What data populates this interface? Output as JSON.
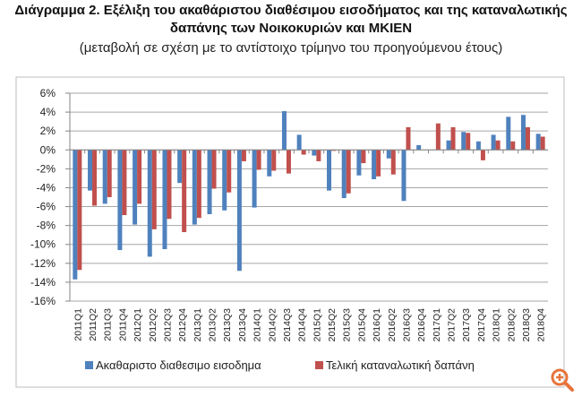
{
  "chart_data": {
    "type": "bar",
    "title": "Διάγραμμα 2. Εξέλιξη του ακαθάριστου διαθέσιμου εισοδήματος και της καταναλωτικής",
    "title_line2": "δαπάνης των Νοικοκυριών και ΜΚΙΕΝ",
    "subtitle": "(μεταβολή σε σχέση με το αντίστοιχο τρίμηνο του προηγούμενου έτους)",
    "xlabel": "",
    "ylabel": "",
    "ylim": [
      -16,
      6
    ],
    "yticks": [
      "6%",
      "4%",
      "2%",
      "0%",
      "-2%",
      "-4%",
      "-6%",
      "-8%",
      "-10%",
      "-12%",
      "-14%",
      "-16%"
    ],
    "grid": true,
    "legend_position": "bottom",
    "categories": [
      "2011Q1",
      "2011Q2",
      "2011Q3",
      "2011Q4",
      "2012Q1",
      "2012Q2",
      "2012Q3",
      "2012Q4",
      "2013Q1",
      "2013Q2",
      "2013Q3",
      "2013Q4",
      "2014Q1",
      "2014Q2",
      "2014Q3",
      "2014Q4",
      "2015Q1",
      "2015Q2",
      "2015Q3",
      "2015Q4",
      "2016Q1",
      "2016Q2",
      "2016Q3",
      "2016Q4",
      "2017Q1",
      "2017Q2",
      "2017Q3",
      "2017Q4",
      "2018Q1",
      "2018Q2",
      "2018Q3",
      "2018Q4"
    ],
    "series": [
      {
        "name": "Ακαθαριστο διαθεσιμο εισοδημα",
        "color": "#4F81BD",
        "values": [
          -13.7,
          -4.3,
          -5.7,
          -10.6,
          -7.9,
          -11.3,
          -10.5,
          -3.5,
          -7.9,
          -6.8,
          -6.4,
          -12.8,
          -6.1,
          -2.8,
          4.1,
          1.6,
          -0.6,
          -4.3,
          -5.1,
          -2.7,
          -3.1,
          -0.9,
          -5.4,
          0.5,
          0.0,
          1.0,
          1.9,
          0.9,
          1.6,
          3.5,
          3.7,
          1.7
        ]
      },
      {
        "name": "Τελική καταναλωτική δαπάνη",
        "color": "#C0504D",
        "values": [
          -12.7,
          -5.9,
          -5.0,
          -6.9,
          -5.7,
          -8.4,
          -7.3,
          -8.7,
          -7.2,
          -4.1,
          -4.5,
          -1.2,
          -2.1,
          -2.2,
          -2.5,
          -0.5,
          -1.2,
          -0.1,
          -4.6,
          -1.4,
          -2.8,
          -2.6,
          2.4,
          0.0,
          2.8,
          2.4,
          1.8,
          -1.1,
          1.0,
          0.9,
          2.4,
          1.4
        ]
      }
    ]
  },
  "icons": {
    "zoom": "zoom-in-icon",
    "zoom_color": "#E8743B"
  }
}
